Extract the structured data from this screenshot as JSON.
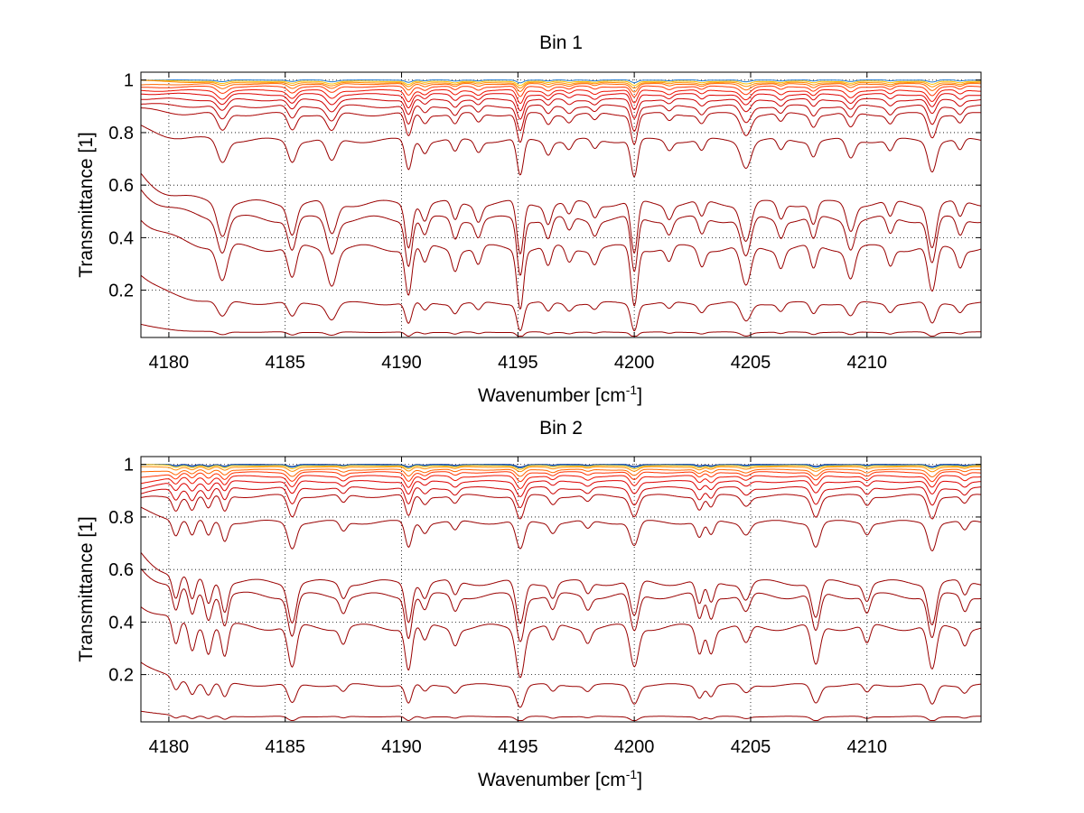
{
  "chart_data": [
    {
      "type": "line",
      "title": "Bin 1",
      "xlabel": "Wavenumber [cm",
      "xlabel_sup": "-1",
      "xlabel_tail": "]",
      "ylabel": "Transmittance [1]",
      "xlim": [
        4178.8,
        4214.9
      ],
      "ylim": [
        0.02,
        1.03
      ],
      "xticks": [
        4180,
        4185,
        4190,
        4195,
        4200,
        4205,
        4210
      ],
      "xtick_labels": [
        "4180",
        "4185",
        "4190",
        "4195",
        "4200",
        "4205",
        "4210"
      ],
      "yticks": [
        0.2,
        0.4,
        0.6,
        0.8,
        1
      ],
      "ytick_labels": [
        "0.2",
        "0.4",
        "0.6",
        "0.8",
        "1"
      ],
      "grid": true,
      "lines": [
        {
          "baseline": 1.0,
          "depth": 0.01,
          "start": 1.0,
          "color": "#1f78c8"
        },
        {
          "baseline": 0.995,
          "depth": 0.015,
          "start": 1.0,
          "color": "#ffc000"
        },
        {
          "baseline": 0.99,
          "depth": 0.02,
          "start": 1.0,
          "color": "#ff8c00"
        },
        {
          "baseline": 0.985,
          "depth": 0.03,
          "start": 0.98,
          "color": "#ff6600"
        },
        {
          "baseline": 0.975,
          "depth": 0.04,
          "start": 0.97,
          "color": "#ff3300"
        },
        {
          "baseline": 0.96,
          "depth": 0.05,
          "start": 0.96,
          "color": "#ee1100"
        },
        {
          "baseline": 0.945,
          "depth": 0.06,
          "start": 0.95,
          "color": "#dd0000"
        },
        {
          "baseline": 0.925,
          "depth": 0.07,
          "start": 0.93,
          "color": "#cc0000"
        },
        {
          "baseline": 0.9,
          "depth": 0.09,
          "start": 0.91,
          "color": "#bb0000"
        },
        {
          "baseline": 0.87,
          "depth": 0.11,
          "start": 0.89,
          "color": "#aa0000"
        },
        {
          "baseline": 0.77,
          "depth": 0.14,
          "start": 0.82,
          "color": "#990000"
        },
        {
          "baseline": 0.53,
          "depth": 0.2,
          "start": 0.64,
          "color": "#990000"
        },
        {
          "baseline": 0.47,
          "depth": 0.21,
          "start": 0.59,
          "color": "#990000"
        },
        {
          "baseline": 0.36,
          "depth": 0.22,
          "start": 0.48,
          "color": "#990000"
        },
        {
          "baseline": 0.15,
          "depth": 0.1,
          "start": 0.26,
          "color": "#990000"
        },
        {
          "baseline": 0.04,
          "depth": 0.02,
          "start": 0.07,
          "color": "#990000"
        }
      ],
      "absorption_lines": [
        {
          "x": 4182.3,
          "w": 0.3,
          "s": 0.6
        },
        {
          "x": 4185.3,
          "w": 0.25,
          "s": 0.55
        },
        {
          "x": 4187.0,
          "w": 0.3,
          "s": 0.6
        },
        {
          "x": 4190.3,
          "w": 0.2,
          "s": 0.8
        },
        {
          "x": 4191.0,
          "w": 0.2,
          "s": 0.3
        },
        {
          "x": 4192.3,
          "w": 0.2,
          "s": 0.35
        },
        {
          "x": 4193.3,
          "w": 0.2,
          "s": 0.3
        },
        {
          "x": 4195.1,
          "w": 0.2,
          "s": 1.0
        },
        {
          "x": 4196.3,
          "w": 0.2,
          "s": 0.35
        },
        {
          "x": 4197.2,
          "w": 0.2,
          "s": 0.25
        },
        {
          "x": 4198.3,
          "w": 0.2,
          "s": 0.25
        },
        {
          "x": 4200.0,
          "w": 0.2,
          "s": 1.0
        },
        {
          "x": 4201.5,
          "w": 0.2,
          "s": 0.25
        },
        {
          "x": 4202.9,
          "w": 0.2,
          "s": 0.3
        },
        {
          "x": 4204.8,
          "w": 0.3,
          "s": 0.7
        },
        {
          "x": 4206.3,
          "w": 0.2,
          "s": 0.3
        },
        {
          "x": 4207.7,
          "w": 0.2,
          "s": 0.4
        },
        {
          "x": 4209.3,
          "w": 0.25,
          "s": 0.5
        },
        {
          "x": 4211.0,
          "w": 0.2,
          "s": 0.3
        },
        {
          "x": 4212.8,
          "w": 0.25,
          "s": 0.8
        },
        {
          "x": 4214.0,
          "w": 0.2,
          "s": 0.3
        }
      ]
    },
    {
      "type": "line",
      "title": "Bin 2",
      "xlabel": "Wavenumber [cm",
      "xlabel_sup": "-1",
      "xlabel_tail": "]",
      "ylabel": "Transmittance [1]",
      "xlim": [
        4178.8,
        4214.9
      ],
      "ylim": [
        0.02,
        1.03
      ],
      "xticks": [
        4180,
        4185,
        4190,
        4195,
        4200,
        4205,
        4210
      ],
      "xtick_labels": [
        "4180",
        "4185",
        "4190",
        "4195",
        "4200",
        "4205",
        "4210"
      ],
      "yticks": [
        0.2,
        0.4,
        0.6,
        0.8,
        1
      ],
      "ytick_labels": [
        "0.2",
        "0.4",
        "0.6",
        "0.8",
        "1"
      ],
      "grid": true,
      "lines": [
        {
          "baseline": 1.0,
          "depth": 0.01,
          "start": 1.0,
          "color": "#0a2a8c"
        },
        {
          "baseline": 0.998,
          "depth": 0.012,
          "start": 1.0,
          "color": "#1f78c8"
        },
        {
          "baseline": 0.995,
          "depth": 0.015,
          "start": 1.0,
          "color": "#ffc000"
        },
        {
          "baseline": 0.99,
          "depth": 0.02,
          "start": 0.99,
          "color": "#ff8c00"
        },
        {
          "baseline": 0.98,
          "depth": 0.03,
          "start": 0.97,
          "color": "#ff6600"
        },
        {
          "baseline": 0.97,
          "depth": 0.04,
          "start": 0.95,
          "color": "#ff3300"
        },
        {
          "baseline": 0.955,
          "depth": 0.05,
          "start": 0.93,
          "color": "#ee1100"
        },
        {
          "baseline": 0.935,
          "depth": 0.06,
          "start": 0.91,
          "color": "#dd0000"
        },
        {
          "baseline": 0.91,
          "depth": 0.08,
          "start": 0.89,
          "color": "#cc0000"
        },
        {
          "baseline": 0.88,
          "depth": 0.1,
          "start": 0.87,
          "color": "#aa0000"
        },
        {
          "baseline": 0.78,
          "depth": 0.12,
          "start": 0.83,
          "color": "#990000"
        },
        {
          "baseline": 0.55,
          "depth": 0.18,
          "start": 0.66,
          "color": "#990000"
        },
        {
          "baseline": 0.5,
          "depth": 0.19,
          "start": 0.61,
          "color": "#990000"
        },
        {
          "baseline": 0.38,
          "depth": 0.2,
          "start": 0.47,
          "color": "#990000"
        },
        {
          "baseline": 0.16,
          "depth": 0.09,
          "start": 0.25,
          "color": "#990000"
        },
        {
          "baseline": 0.04,
          "depth": 0.02,
          "start": 0.06,
          "color": "#990000"
        }
      ],
      "absorption_lines": [
        {
          "x": 4180.3,
          "w": 0.2,
          "s": 0.5
        },
        {
          "x": 4181.0,
          "w": 0.2,
          "s": 0.5
        },
        {
          "x": 4181.7,
          "w": 0.2,
          "s": 0.5
        },
        {
          "x": 4182.4,
          "w": 0.2,
          "s": 0.6
        },
        {
          "x": 4185.3,
          "w": 0.25,
          "s": 0.8
        },
        {
          "x": 4187.5,
          "w": 0.2,
          "s": 0.3
        },
        {
          "x": 4190.3,
          "w": 0.2,
          "s": 0.8
        },
        {
          "x": 4191.0,
          "w": 0.2,
          "s": 0.3
        },
        {
          "x": 4192.3,
          "w": 0.2,
          "s": 0.3
        },
        {
          "x": 4195.1,
          "w": 0.25,
          "s": 0.9
        },
        {
          "x": 4196.5,
          "w": 0.2,
          "s": 0.3
        },
        {
          "x": 4198.0,
          "w": 0.2,
          "s": 0.25
        },
        {
          "x": 4200.0,
          "w": 0.25,
          "s": 0.75
        },
        {
          "x": 4202.8,
          "w": 0.2,
          "s": 0.5
        },
        {
          "x": 4203.3,
          "w": 0.2,
          "s": 0.45
        },
        {
          "x": 4204.8,
          "w": 0.25,
          "s": 0.35
        },
        {
          "x": 4207.8,
          "w": 0.25,
          "s": 0.75
        },
        {
          "x": 4210.0,
          "w": 0.2,
          "s": 0.35
        },
        {
          "x": 4212.8,
          "w": 0.25,
          "s": 0.85
        },
        {
          "x": 4214.2,
          "w": 0.2,
          "s": 0.3
        }
      ]
    }
  ]
}
